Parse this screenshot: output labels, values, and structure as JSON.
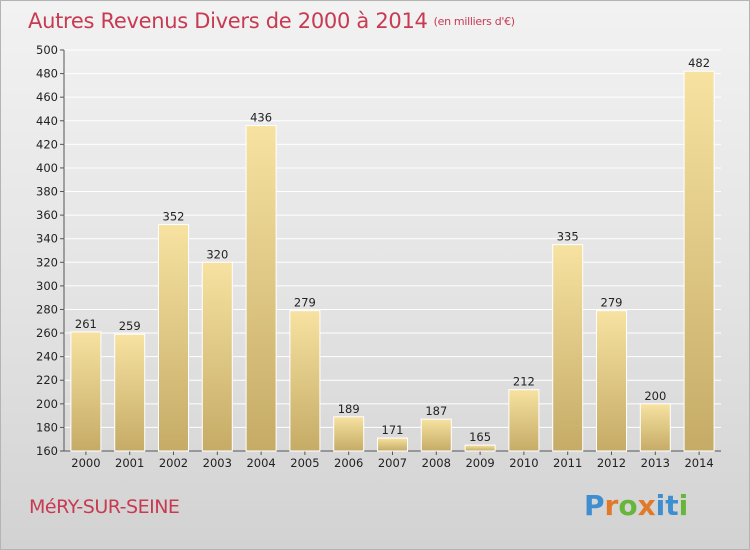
{
  "title": "Autres Revenus Divers de 2000 à 2014",
  "title_unit": "(en milliers d'€)",
  "city": "MéRY-SUR-SEINE",
  "logo": {
    "letters": [
      "P",
      "r",
      "o",
      "x",
      "i",
      "t",
      "i"
    ],
    "colors": [
      "#3f8fd0",
      "#e1792b",
      "#67b53a",
      "#e1792b",
      "#3f8fd0",
      "#3f8fd0",
      "#67b53a"
    ]
  },
  "colors": {
    "title": "#c73a52",
    "bar_light": "#f7e2a1",
    "bar_dark": "#c5ab66",
    "gridline": "#ffffff"
  },
  "chart_data": {
    "type": "bar",
    "title": "Autres Revenus Divers de 2000 à 2014",
    "categories": [
      "2000",
      "2001",
      "2002",
      "2003",
      "2004",
      "2005",
      "2006",
      "2007",
      "2008",
      "2009",
      "2010",
      "2011",
      "2012",
      "2013",
      "2014"
    ],
    "values": [
      261,
      259,
      352,
      320,
      436,
      279,
      189,
      171,
      187,
      165,
      212,
      335,
      279,
      200,
      482
    ],
    "ylim": [
      160,
      500
    ],
    "ytick_step": 20,
    "xlabel": "",
    "ylabel": "",
    "grid": true
  }
}
